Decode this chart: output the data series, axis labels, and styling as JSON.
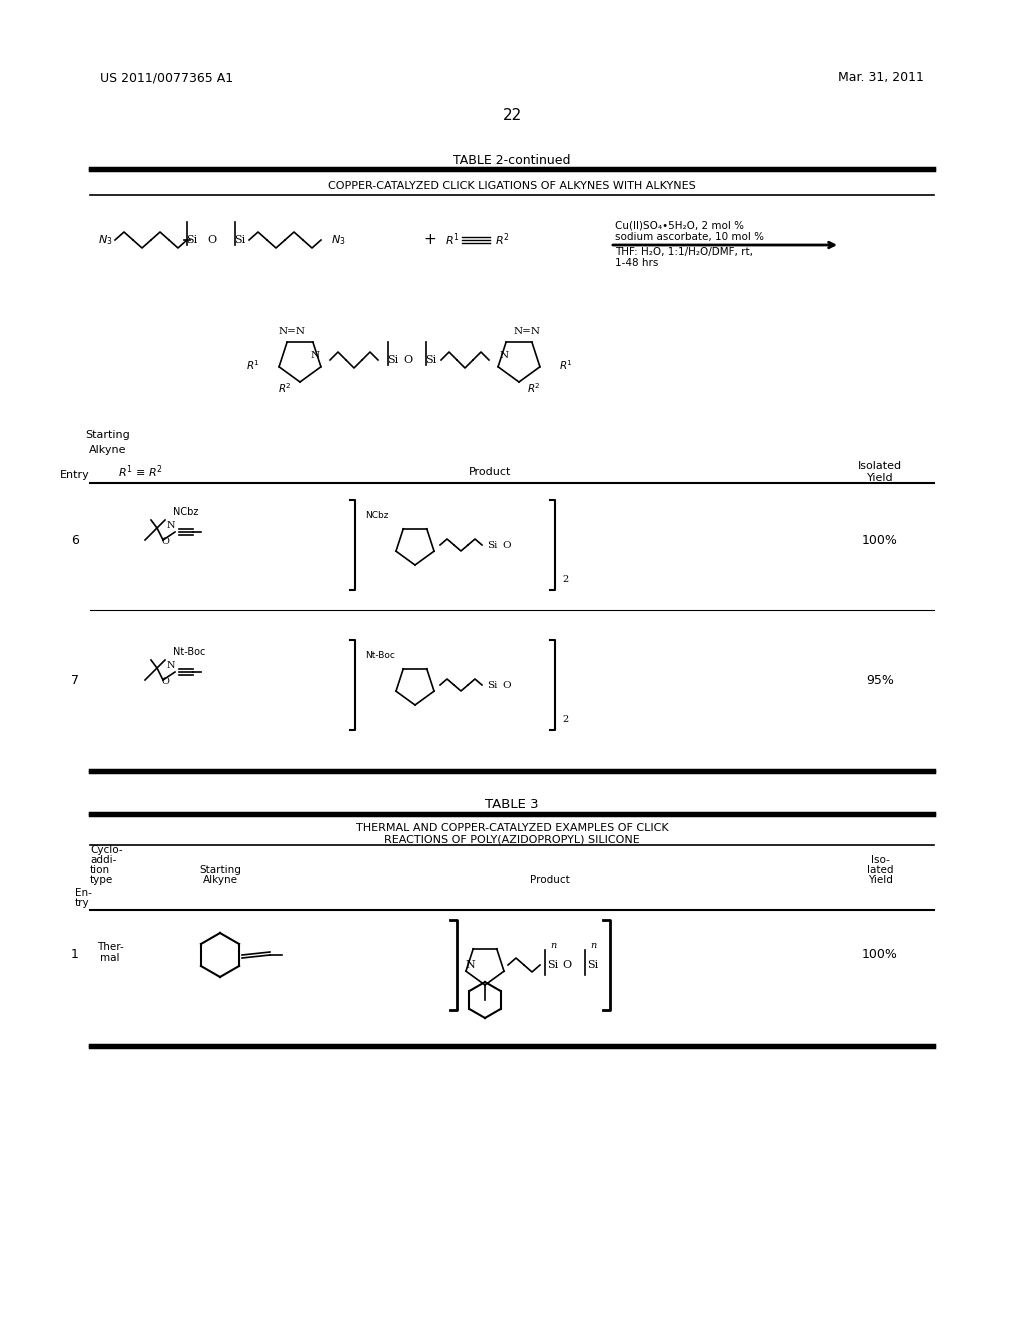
{
  "background_color": "#ffffff",
  "header_left": "US 2011/0077365 A1",
  "header_right": "Mar. 31, 2011",
  "page_number": "22",
  "table2_title": "TABLE 2-continued",
  "table2_subtitle": "COPPER-CATALYZED CLICK LIGATIONS OF ALKYNES WITH ALKYNES",
  "reaction_conditions": "Cu(II)SO•4·5H₂O, 2 mol %\nsodium ascorbate, 10 mol %\nTHF: H₂O, 1:1/H₂O/DMF, rt,\n1-48 hrs",
  "table3_title": "TABLE 3",
  "table3_subtitle": "THERMAL AND COPPER-CATALYZED EXAMPLES OF CLICK\nREACTIONS OF POLY(AZIDOPROPYL) SILICONE",
  "col_headers_t2": [
    "Entry",
    "R¹ ≡ R²",
    "Product",
    "Isolated\nYield"
  ],
  "col_headers_t3": [
    "En-\ntry",
    "Cyclo-\naddi-\ntion\ntype",
    "Starting\nAlkyne",
    "Product",
    "Iso-\nlated\nYield"
  ],
  "entries_t2": [
    {
      "entry": "6",
      "yield": "100%"
    },
    {
      "entry": "7",
      "yield": "95%"
    }
  ],
  "entries_t3": [
    {
      "entry": "1",
      "type": "Ther-\nmal",
      "yield": "100%"
    }
  ]
}
